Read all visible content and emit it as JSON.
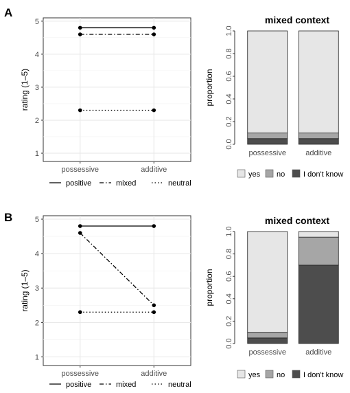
{
  "chart_data": [
    {
      "panel": "A",
      "type": "line",
      "title": "",
      "xlabel": "",
      "ylabel": "rating (1–5)",
      "categories": [
        "possessive",
        "additive"
      ],
      "ylim": [
        0.75,
        5.1
      ],
      "yticks": [
        1,
        2,
        3,
        4,
        5
      ],
      "grid": true,
      "legend_position": "bottom",
      "series": [
        {
          "name": "positive",
          "values": [
            4.8,
            4.8
          ],
          "linestyle": "solid"
        },
        {
          "name": "mixed",
          "values": [
            4.6,
            4.6
          ],
          "linestyle": "dashdot"
        },
        {
          "name": "neutral",
          "values": [
            2.3,
            2.3
          ],
          "linestyle": "dotted"
        }
      ]
    },
    {
      "panel": "A",
      "type": "bar",
      "stacked": true,
      "title": "mixed context",
      "xlabel": "",
      "ylabel": "proportion",
      "categories": [
        "possessive",
        "additive"
      ],
      "ylim": [
        0,
        1
      ],
      "yticks": [
        "0.0",
        "0.2",
        "0.4",
        "0.6",
        "0.8",
        "1.0"
      ],
      "grid": false,
      "legend_position": "bottom",
      "series": [
        {
          "name": "I don't know",
          "values": [
            0.05,
            0.05
          ],
          "color": "#4d4d4d"
        },
        {
          "name": "no",
          "values": [
            0.05,
            0.05
          ],
          "color": "#a6a6a6"
        },
        {
          "name": "yes",
          "values": [
            0.9,
            0.9
          ],
          "color": "#e6e6e6"
        }
      ],
      "legend_order": [
        "yes",
        "no",
        "I don't know"
      ]
    },
    {
      "panel": "B",
      "type": "line",
      "title": "",
      "xlabel": "",
      "ylabel": "rating (1–5)",
      "categories": [
        "possessive",
        "additive"
      ],
      "ylim": [
        0.75,
        5.1
      ],
      "yticks": [
        1,
        2,
        3,
        4,
        5
      ],
      "grid": true,
      "legend_position": "bottom",
      "series": [
        {
          "name": "positive",
          "values": [
            4.8,
            4.8
          ],
          "linestyle": "solid"
        },
        {
          "name": "mixed",
          "values": [
            4.6,
            2.5
          ],
          "linestyle": "dashdot"
        },
        {
          "name": "neutral",
          "values": [
            2.3,
            2.3
          ],
          "linestyle": "dotted"
        }
      ]
    },
    {
      "panel": "B",
      "type": "bar",
      "stacked": true,
      "title": "mixed context",
      "xlabel": "",
      "ylabel": "proportion",
      "categories": [
        "possessive",
        "additive"
      ],
      "ylim": [
        0,
        1
      ],
      "yticks": [
        "0.0",
        "0.2",
        "0.4",
        "0.6",
        "0.8",
        "1.0"
      ],
      "grid": false,
      "legend_position": "bottom",
      "series": [
        {
          "name": "I don't know",
          "values": [
            0.05,
            0.7
          ],
          "color": "#4d4d4d"
        },
        {
          "name": "no",
          "values": [
            0.05,
            0.25
          ],
          "color": "#a6a6a6"
        },
        {
          "name": "yes",
          "values": [
            0.9,
            0.05
          ],
          "color": "#e6e6e6"
        }
      ],
      "legend_order": [
        "yes",
        "no",
        "I don't know"
      ]
    }
  ]
}
